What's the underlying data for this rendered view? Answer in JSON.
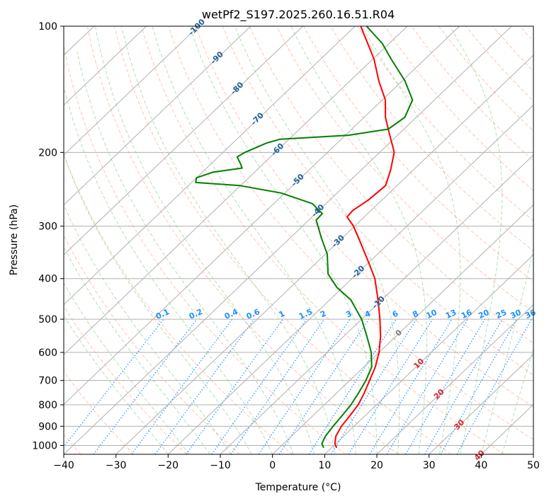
{
  "chart_data": {
    "type": "line",
    "title": "wetPf2_S197.2025.260.16.51.R04",
    "xlabel": "Temperature (°C)",
    "ylabel": "Pressure (hPa)",
    "x_scale": "skew-T",
    "y_scale": "log",
    "xlim": [
      -40,
      50
    ],
    "ylim": [
      1050,
      100
    ],
    "x_ticks": [
      "−40",
      "−30",
      "−20",
      "−10",
      "0",
      "10",
      "20",
      "30",
      "40",
      "50"
    ],
    "x_tick_values": [
      -40,
      -30,
      -20,
      -10,
      0,
      10,
      20,
      30,
      40,
      50
    ],
    "y_ticks": [
      "100",
      "200",
      "300",
      "400",
      "500",
      "600",
      "700",
      "800",
      "900",
      "1000"
    ],
    "y_tick_values": [
      100,
      200,
      300,
      400,
      500,
      600,
      700,
      800,
      900,
      1000
    ],
    "grid": true,
    "series": [
      {
        "kind": "temperature",
        "color": "#ff0000",
        "points": [
          {
            "p": 1013,
            "t": 11.0
          },
          {
            "p": 990,
            "t": 9.8
          },
          {
            "p": 950,
            "t": 8.5
          },
          {
            "p": 900,
            "t": 7.6
          },
          {
            "p": 850,
            "t": 7.1
          },
          {
            "p": 800,
            "t": 6.5
          },
          {
            "p": 750,
            "t": 5.3
          },
          {
            "p": 700,
            "t": 3.8
          },
          {
            "p": 650,
            "t": 2.2
          },
          {
            "p": 600,
            "t": 0.0
          },
          {
            "p": 550,
            "t": -2.9
          },
          {
            "p": 500,
            "t": -6.5
          },
          {
            "p": 450,
            "t": -10.7
          },
          {
            "p": 400,
            "t": -15.6
          },
          {
            "p": 370,
            "t": -19.5
          },
          {
            "p": 330,
            "t": -25.3
          },
          {
            "p": 300,
            "t": -30.2
          },
          {
            "p": 285,
            "t": -33.3
          },
          {
            "p": 275,
            "t": -33.5
          },
          {
            "p": 260,
            "t": -32.6
          },
          {
            "p": 240,
            "t": -32.2
          },
          {
            "p": 220,
            "t": -34.4
          },
          {
            "p": 200,
            "t": -37.2
          },
          {
            "p": 180,
            "t": -42.0
          },
          {
            "p": 165,
            "t": -45.9
          },
          {
            "p": 150,
            "t": -49.4
          },
          {
            "p": 135,
            "t": -54.5
          },
          {
            "p": 120,
            "t": -59.7
          },
          {
            "p": 110,
            "t": -64.1
          },
          {
            "p": 100,
            "t": -68.9
          }
        ]
      },
      {
        "kind": "dewpoint",
        "color": "#008000",
        "points": [
          {
            "p": 1013,
            "t": 8.5
          },
          {
            "p": 990,
            "t": 7.3
          },
          {
            "p": 950,
            "t": 6.5
          },
          {
            "p": 900,
            "t": 6.0
          },
          {
            "p": 850,
            "t": 5.6
          },
          {
            "p": 800,
            "t": 5.1
          },
          {
            "p": 750,
            "t": 4.2
          },
          {
            "p": 700,
            "t": 3.1
          },
          {
            "p": 650,
            "t": 1.5
          },
          {
            "p": 600,
            "t": -1.5
          },
          {
            "p": 550,
            "t": -5.5
          },
          {
            "p": 500,
            "t": -10.0
          },
          {
            "p": 450,
            "t": -15.9
          },
          {
            "p": 420,
            "t": -21.1
          },
          {
            "p": 390,
            "t": -25.5
          },
          {
            "p": 350,
            "t": -29.6
          },
          {
            "p": 320,
            "t": -34.0
          },
          {
            "p": 300,
            "t": -37.0
          },
          {
            "p": 290,
            "t": -38.6
          },
          {
            "p": 280,
            "t": -38.7
          },
          {
            "p": 265,
            "t": -42.6
          },
          {
            "p": 250,
            "t": -50.7
          },
          {
            "p": 240,
            "t": -60.1
          },
          {
            "p": 236,
            "t": -69.2
          },
          {
            "p": 230,
            "t": -70.0
          },
          {
            "p": 223,
            "t": -68.0
          },
          {
            "p": 218,
            "t": -63.2
          },
          {
            "p": 212,
            "t": -64.6
          },
          {
            "p": 205,
            "t": -66.4
          },
          {
            "p": 200,
            "t": -65.8
          },
          {
            "p": 190,
            "t": -63.5
          },
          {
            "p": 186,
            "t": -61.7
          },
          {
            "p": 182,
            "t": -49.4
          },
          {
            "p": 176,
            "t": -43.0
          },
          {
            "p": 165,
            "t": -42.2
          },
          {
            "p": 150,
            "t": -44.2
          },
          {
            "p": 135,
            "t": -49.5
          },
          {
            "p": 120,
            "t": -56.4
          },
          {
            "p": 110,
            "t": -61.3
          },
          {
            "p": 100,
            "t": -67.8
          }
        ]
      }
    ],
    "isotherm_labels": [
      "-100",
      "-90",
      "-80",
      "-70",
      "-60",
      "-50",
      "-40",
      "-30",
      "-20",
      "-10",
      "0",
      "10",
      "20",
      "30",
      "40"
    ],
    "isotherm_label_values": [
      -100,
      -90,
      -80,
      -70,
      -60,
      -50,
      -40,
      -30,
      -20,
      -10,
      0,
      10,
      20,
      30,
      40
    ],
    "mixing_ratio_labels": [
      "0.1",
      "0.2",
      "0.4",
      "0.6",
      "1",
      "1.5",
      "2",
      "3",
      "4",
      "6",
      "8",
      "10",
      "13",
      "16",
      "20",
      "25",
      "30",
      "36"
    ],
    "mixing_ratio_values": [
      0.1,
      0.2,
      0.4,
      0.6,
      1,
      1.5,
      2,
      3,
      4,
      6,
      8,
      10,
      13,
      16,
      20,
      25,
      30,
      36
    ],
    "colors": {
      "temperature": "#ff0000",
      "dewpoint": "#008000",
      "isotherm_cold": "#1f5f9a",
      "isotherm_warm": "#d62728",
      "isotherm_zero": "#7f7f7f",
      "mixing_ratio": "#1e90ff",
      "dry_adiabat": "#ff7f50",
      "moist_adiabat": "#2ca02c",
      "grid": "#b0b0b0"
    }
  }
}
